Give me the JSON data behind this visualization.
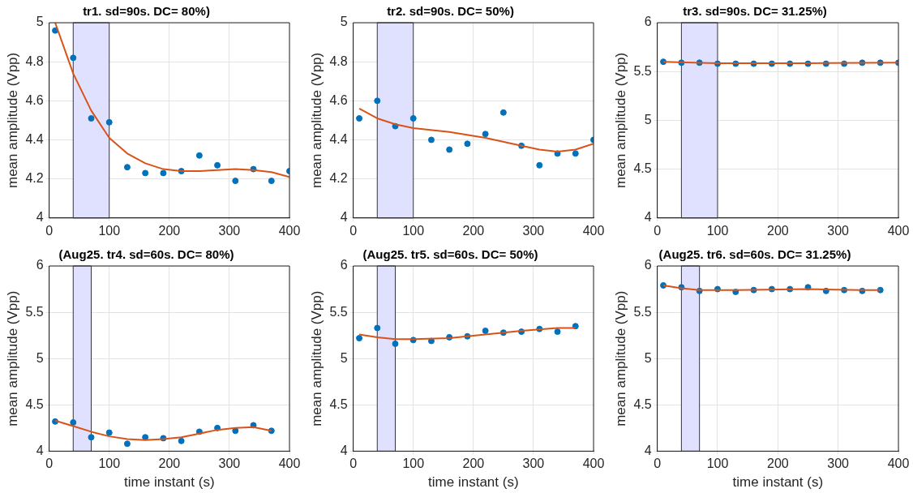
{
  "chart_data": [
    {
      "type": "scatter",
      "title": "tr1. sd=90s. DC= 80%)",
      "ylabel": "mean amplitude (Vpp)",
      "xlim": [
        0,
        400
      ],
      "xticks": [
        0,
        100,
        200,
        300,
        400
      ],
      "ylim": [
        4,
        5
      ],
      "yticks": [
        4,
        4.2,
        4.4,
        4.6,
        4.8,
        5
      ],
      "grid": true,
      "bands": [
        {
          "axis": "x",
          "from": 40,
          "to": 100,
          "color": "#e0e0ff"
        }
      ],
      "series": [
        {
          "type": "scatter",
          "marker": "circle",
          "color": "#0072bd",
          "x": [
            10,
            40,
            70,
            100,
            130,
            160,
            190,
            220,
            250,
            280,
            310,
            340,
            370,
            400
          ],
          "values": [
            4.96,
            4.82,
            4.51,
            4.49,
            4.26,
            4.23,
            4.23,
            4.24,
            4.32,
            4.27,
            4.19,
            4.25,
            4.19,
            4.24
          ]
        },
        {
          "type": "line",
          "marker": "none",
          "color": "#d95319",
          "x": [
            10,
            40,
            70,
            100,
            130,
            160,
            190,
            220,
            250,
            280,
            310,
            340,
            370,
            400
          ],
          "values": [
            5.0,
            4.74,
            4.55,
            4.41,
            4.33,
            4.28,
            4.25,
            4.24,
            4.24,
            4.245,
            4.25,
            4.245,
            4.235,
            4.21
          ]
        }
      ]
    },
    {
      "type": "scatter",
      "title": "tr2. sd=90s. DC= 50%)",
      "ylabel": "mean amplitude (Vpp)",
      "xlim": [
        0,
        400
      ],
      "xticks": [
        0,
        100,
        200,
        300,
        400
      ],
      "ylim": [
        4,
        5
      ],
      "yticks": [
        4,
        4.2,
        4.4,
        4.6,
        4.8,
        5
      ],
      "grid": true,
      "bands": [
        {
          "axis": "x",
          "from": 40,
          "to": 100,
          "color": "#e0e0ff"
        }
      ],
      "series": [
        {
          "type": "scatter",
          "marker": "circle",
          "color": "#0072bd",
          "x": [
            10,
            40,
            70,
            100,
            130,
            160,
            190,
            220,
            250,
            280,
            310,
            340,
            370,
            400
          ],
          "values": [
            4.51,
            4.6,
            4.47,
            4.51,
            4.4,
            4.35,
            4.38,
            4.43,
            4.54,
            4.37,
            4.27,
            4.33,
            4.33,
            4.4
          ]
        },
        {
          "type": "line",
          "marker": "none",
          "color": "#d95319",
          "x": [
            10,
            40,
            70,
            100,
            160,
            220,
            280,
            310,
            340,
            370,
            400
          ],
          "values": [
            4.56,
            4.51,
            4.48,
            4.46,
            4.44,
            4.41,
            4.37,
            4.35,
            4.34,
            4.35,
            4.38
          ]
        }
      ]
    },
    {
      "type": "scatter",
      "title": "tr3. sd=90s. DC= 31.25%)",
      "ylabel": "mean amplitude (Vpp)",
      "xlim": [
        0,
        400
      ],
      "xticks": [
        0,
        100,
        200,
        300,
        400
      ],
      "ylim": [
        4,
        6
      ],
      "yticks": [
        4,
        4.5,
        5,
        5.5,
        6
      ],
      "grid": true,
      "bands": [
        {
          "axis": "x",
          "from": 40,
          "to": 100,
          "color": "#e0e0ff"
        }
      ],
      "series": [
        {
          "type": "scatter",
          "marker": "circle",
          "color": "#0072bd",
          "x": [
            10,
            40,
            70,
            100,
            130,
            160,
            190,
            220,
            250,
            280,
            310,
            340,
            370,
            400
          ],
          "values": [
            5.6,
            5.59,
            5.59,
            5.58,
            5.58,
            5.58,
            5.58,
            5.58,
            5.58,
            5.58,
            5.58,
            5.59,
            5.59,
            5.59
          ]
        },
        {
          "type": "line",
          "marker": "none",
          "color": "#d95319",
          "x": [
            10,
            100,
            250,
            400
          ],
          "values": [
            5.6,
            5.585,
            5.585,
            5.59
          ]
        }
      ]
    },
    {
      "type": "scatter",
      "title": "(Aug25. tr4. sd=60s. DC= 80%)",
      "xlabel": "time instant (s)",
      "ylabel": "mean amplitude (Vpp)",
      "xlim": [
        0,
        400
      ],
      "xticks": [
        0,
        100,
        200,
        300,
        400
      ],
      "ylim": [
        4,
        6
      ],
      "yticks": [
        4,
        4.5,
        5,
        5.5,
        6
      ],
      "grid": true,
      "bands": [
        {
          "axis": "x",
          "from": 40,
          "to": 70,
          "color": "#e0e0ff"
        }
      ],
      "series": [
        {
          "type": "scatter",
          "marker": "circle",
          "color": "#0072bd",
          "x": [
            10,
            40,
            70,
            100,
            130,
            160,
            190,
            220,
            250,
            280,
            310,
            340,
            370
          ],
          "values": [
            4.32,
            4.31,
            4.15,
            4.2,
            4.08,
            4.15,
            4.14,
            4.11,
            4.21,
            4.25,
            4.22,
            4.28,
            4.22
          ]
        },
        {
          "type": "line",
          "marker": "none",
          "color": "#d95319",
          "x": [
            10,
            40,
            70,
            100,
            130,
            160,
            190,
            220,
            250,
            280,
            310,
            340,
            370
          ],
          "values": [
            4.33,
            4.27,
            4.21,
            4.16,
            4.13,
            4.12,
            4.13,
            4.15,
            4.19,
            4.23,
            4.25,
            4.26,
            4.22
          ]
        }
      ]
    },
    {
      "type": "scatter",
      "title": "(Aug25. tr5. sd=60s. DC= 50%)",
      "xlabel": "time instant (s)",
      "ylabel": "mean amplitude (Vpp)",
      "xlim": [
        0,
        400
      ],
      "xticks": [
        0,
        100,
        200,
        300,
        400
      ],
      "ylim": [
        4,
        6
      ],
      "yticks": [
        4,
        4.5,
        5,
        5.5,
        6
      ],
      "grid": true,
      "bands": [
        {
          "axis": "x",
          "from": 40,
          "to": 70,
          "color": "#e0e0ff"
        }
      ],
      "series": [
        {
          "type": "scatter",
          "marker": "circle",
          "color": "#0072bd",
          "x": [
            10,
            40,
            70,
            100,
            130,
            160,
            190,
            220,
            250,
            280,
            310,
            340,
            370
          ],
          "values": [
            5.22,
            5.33,
            5.16,
            5.2,
            5.19,
            5.23,
            5.24,
            5.3,
            5.28,
            5.29,
            5.32,
            5.29,
            5.35
          ]
        },
        {
          "type": "line",
          "marker": "none",
          "color": "#d95319",
          "x": [
            10,
            40,
            70,
            100,
            160,
            220,
            280,
            340,
            370
          ],
          "values": [
            5.26,
            5.23,
            5.21,
            5.21,
            5.22,
            5.26,
            5.3,
            5.33,
            5.33
          ]
        }
      ]
    },
    {
      "type": "scatter",
      "title": "(Aug25. tr6. sd=60s. DC= 31.25%)",
      "xlabel": "time instant (s)",
      "ylabel": "mean amplitude (Vpp)",
      "xlim": [
        0,
        400
      ],
      "xticks": [
        0,
        100,
        200,
        300,
        400
      ],
      "ylim": [
        4,
        6
      ],
      "yticks": [
        4,
        4.5,
        5,
        5.5,
        6
      ],
      "grid": true,
      "bands": [
        {
          "axis": "x",
          "from": 40,
          "to": 70,
          "color": "#e0e0ff"
        }
      ],
      "series": [
        {
          "type": "scatter",
          "marker": "circle",
          "color": "#0072bd",
          "x": [
            10,
            40,
            70,
            100,
            130,
            160,
            190,
            220,
            250,
            280,
            310,
            340,
            370
          ],
          "values": [
            5.79,
            5.77,
            5.73,
            5.75,
            5.72,
            5.74,
            5.75,
            5.75,
            5.77,
            5.73,
            5.74,
            5.73,
            5.74
          ]
        },
        {
          "type": "line",
          "marker": "none",
          "color": "#d95319",
          "x": [
            10,
            40,
            70,
            130,
            250,
            340,
            370
          ],
          "values": [
            5.79,
            5.76,
            5.74,
            5.74,
            5.75,
            5.74,
            5.74
          ]
        }
      ]
    }
  ]
}
